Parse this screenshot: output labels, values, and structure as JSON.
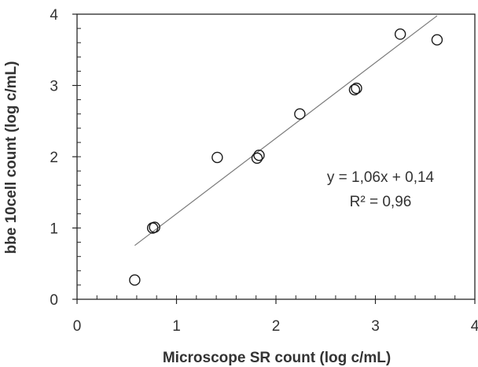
{
  "chart_data": {
    "type": "scatter",
    "title": "",
    "xlabel": "Microscope SR count (log c/mL)",
    "ylabel": "bbe 10cell count (log c/mL)",
    "xlim": [
      0,
      4
    ],
    "ylim": [
      0,
      4
    ],
    "x_ticks": [
      "0",
      "1",
      "2",
      "3",
      "4"
    ],
    "y_ticks": [
      "0",
      "1",
      "2",
      "3",
      "4"
    ],
    "grid": false,
    "legend": "none",
    "marker": "open-circle",
    "points": [
      {
        "x": 0.58,
        "y": 0.27
      },
      {
        "x": 0.76,
        "y": 1.0
      },
      {
        "x": 0.78,
        "y": 1.01
      },
      {
        "x": 1.41,
        "y": 1.99
      },
      {
        "x": 1.81,
        "y": 1.98
      },
      {
        "x": 1.83,
        "y": 2.02
      },
      {
        "x": 2.24,
        "y": 2.6
      },
      {
        "x": 2.79,
        "y": 2.94
      },
      {
        "x": 2.81,
        "y": 2.96
      },
      {
        "x": 3.25,
        "y": 3.72
      },
      {
        "x": 3.62,
        "y": 3.64
      }
    ],
    "trendline": {
      "slope": 1.06,
      "intercept": 0.14,
      "x_range": [
        0.58,
        3.62
      ]
    },
    "annotations": {
      "equation": "y = 1,06x + 0,14",
      "r_squared": "R² = 0,96"
    }
  }
}
